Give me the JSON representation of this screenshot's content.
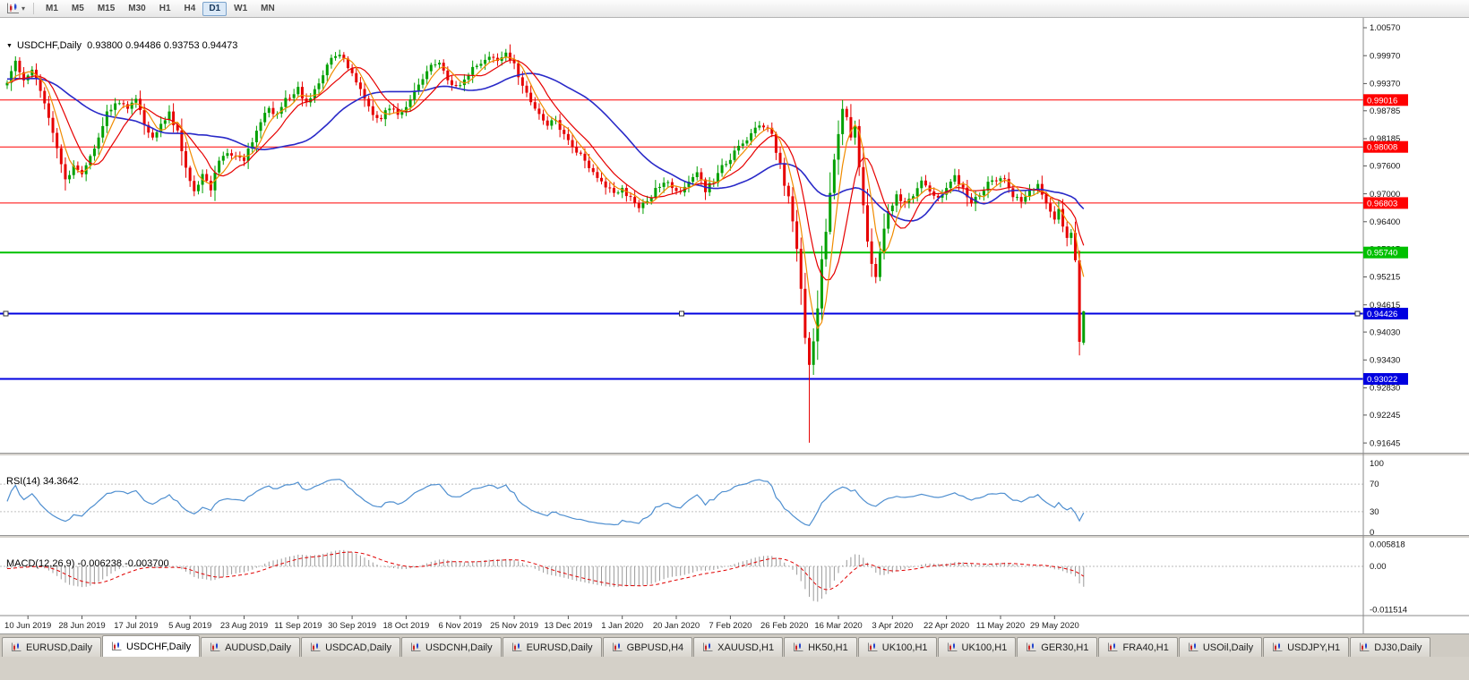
{
  "icons": {
    "symbol_dropdown": "▼",
    "toolbar_caret": "▾"
  },
  "toolbar": {
    "timeframes": [
      {
        "label": "M1",
        "active": false
      },
      {
        "label": "M5",
        "active": false
      },
      {
        "label": "M15",
        "active": false
      },
      {
        "label": "M30",
        "active": false
      },
      {
        "label": "H1",
        "active": false
      },
      {
        "label": "H4",
        "active": false
      },
      {
        "label": "D1",
        "active": true
      },
      {
        "label": "W1",
        "active": false
      },
      {
        "label": "MN",
        "active": false
      }
    ]
  },
  "chart": {
    "symbol": "USDCHF",
    "timeframe": "Daily",
    "title_line": "USDCHF,Daily  0.93800 0.94486 0.93753 0.94473"
  },
  "indicators": {
    "rsi": {
      "label": "RSI(14) 34.3642",
      "period": 14,
      "value": 34.3642,
      "axis_labels": [
        "100",
        "70",
        "30",
        "0"
      ],
      "level_lines": [
        70,
        30
      ],
      "line_color": "#4f8fd0"
    },
    "macd": {
      "label": "MACD(12,26,9) -0.006238 -0.003700",
      "fast": 12,
      "slow": 26,
      "signal": 9,
      "value": -0.006238,
      "signal_value": -0.0037,
      "axis_labels": [
        "0.005818",
        "0.00",
        "-0.011514"
      ],
      "histogram_color": "#9a9a9a",
      "signal_color": "#e00000"
    }
  },
  "price_axis": {
    "labels": [
      "1.00570",
      "0.99970",
      "0.99370",
      "0.98785",
      "0.98185",
      "0.97600",
      "0.97000",
      "0.96400",
      "0.95815",
      "0.95215",
      "0.94615",
      "0.94030",
      "0.93430",
      "0.92830",
      "0.92245",
      "0.91645"
    ]
  },
  "date_axis": {
    "labels": [
      "10 Jun 2019",
      "28 Jun 2019",
      "17 Jul 2019",
      "5 Aug 2019",
      "23 Aug 2019",
      "11 Sep 2019",
      "30 Sep 2019",
      "18 Oct 2019",
      "6 Nov 2019",
      "25 Nov 2019",
      "13 Dec 2019",
      "1 Jan 2020",
      "20 Jan 2020",
      "7 Feb 2020",
      "26 Feb 2020",
      "16 Mar 2020",
      "3 Apr 2020",
      "22 Apr 2020",
      "11 May 2020",
      "29 May 2020"
    ]
  },
  "chart_data": {
    "type": "candlestick",
    "symbol": "USDCHF",
    "timeframe": "Daily",
    "current_bar": {
      "open": 0.938,
      "high": 0.94486,
      "low": 0.93753,
      "close": 0.94473
    },
    "price_range": [
      0.91645,
      1.0057
    ],
    "num_candles": 260,
    "up_color": "#00a000",
    "down_color": "#e60000",
    "horizontal_lines": [
      {
        "price": 0.99016,
        "label": "0.99016",
        "color": "#ff0000",
        "width": 1,
        "selected": false
      },
      {
        "price": 0.98008,
        "label": "0.98008",
        "color": "#ff0000",
        "width": 1,
        "selected": false
      },
      {
        "price": 0.96803,
        "label": "0.96803",
        "color": "#ff0000",
        "width": 1,
        "selected": false
      },
      {
        "price": 0.9574,
        "label": "0.95740",
        "color": "#00c000",
        "width": 2,
        "selected": false
      },
      {
        "price": 0.94426,
        "label": "0.94426",
        "color": "#0000e0",
        "width": 2,
        "selected": true
      },
      {
        "price": 0.93022,
        "label": "0.93022",
        "color": "#0000e0",
        "width": 2,
        "selected": false
      }
    ],
    "moving_averages": [
      {
        "name": "fast",
        "period": 5,
        "color": "#f08c00"
      },
      {
        "name": "medium",
        "period": 10,
        "color": "#e60000"
      },
      {
        "name": "slow",
        "period": 30,
        "color": "#2929c8"
      }
    ],
    "spikes": [
      {
        "index": 193,
        "low": 0.9165
      },
      {
        "index": 201,
        "high": 0.9902
      }
    ],
    "price_path_anchors": [
      [
        0,
        0.9935
      ],
      [
        2,
        0.9985
      ],
      [
        4,
        0.9945
      ],
      [
        6,
        0.9968
      ],
      [
        8,
        0.9925
      ],
      [
        10,
        0.9862
      ],
      [
        12,
        0.9795
      ],
      [
        14,
        0.9728
      ],
      [
        16,
        0.9762
      ],
      [
        18,
        0.9742
      ],
      [
        20,
        0.9778
      ],
      [
        22,
        0.982
      ],
      [
        24,
        0.9872
      ],
      [
        26,
        0.9898
      ],
      [
        29,
        0.9882
      ],
      [
        31,
        0.9902
      ],
      [
        33,
        0.9852
      ],
      [
        35,
        0.9822
      ],
      [
        37,
        0.9848
      ],
      [
        39,
        0.9872
      ],
      [
        41,
        0.9832
      ],
      [
        43,
        0.9752
      ],
      [
        45,
        0.9708
      ],
      [
        47,
        0.9738
      ],
      [
        49,
        0.9712
      ],
      [
        51,
        0.9772
      ],
      [
        53,
        0.9792
      ],
      [
        55,
        0.9782
      ],
      [
        57,
        0.9772
      ],
      [
        59,
        0.9812
      ],
      [
        61,
        0.9858
      ],
      [
        63,
        0.9882
      ],
      [
        65,
        0.9868
      ],
      [
        67,
        0.9902
      ],
      [
        70,
        0.9928
      ],
      [
        72,
        0.9892
      ],
      [
        74,
        0.9922
      ],
      [
        76,
        0.9958
      ],
      [
        78,
        0.9992
      ],
      [
        80,
        1.0002
      ],
      [
        82,
        0.9972
      ],
      [
        84,
        0.9938
      ],
      [
        86,
        0.9902
      ],
      [
        88,
        0.9868
      ],
      [
        90,
        0.9862
      ],
      [
        92,
        0.9888
      ],
      [
        94,
        0.9868
      ],
      [
        96,
        0.9888
      ],
      [
        98,
        0.9918
      ],
      [
        100,
        0.9948
      ],
      [
        102,
        0.9972
      ],
      [
        104,
        0.9982
      ],
      [
        106,
        0.9948
      ],
      [
        108,
        0.9928
      ],
      [
        110,
        0.9948
      ],
      [
        112,
        0.9968
      ],
      [
        114,
        0.9982
      ],
      [
        116,
        0.9998
      ],
      [
        118,
        0.9988
      ],
      [
        120,
        1.0002
      ],
      [
        122,
        0.9978
      ],
      [
        124,
        0.9932
      ],
      [
        126,
        0.9898
      ],
      [
        128,
        0.9872
      ],
      [
        130,
        0.9848
      ],
      [
        132,
        0.9858
      ],
      [
        134,
        0.9828
      ],
      [
        136,
        0.9802
      ],
      [
        138,
        0.9782
      ],
      [
        140,
        0.9758
      ],
      [
        142,
        0.9738
      ],
      [
        144,
        0.9718
      ],
      [
        146,
        0.9698
      ],
      [
        148,
        0.9712
      ],
      [
        150,
        0.9688
      ],
      [
        152,
        0.9668
      ],
      [
        154,
        0.9688
      ],
      [
        156,
        0.9708
      ],
      [
        158,
        0.9728
      ],
      [
        160,
        0.9718
      ],
      [
        162,
        0.9698
      ],
      [
        164,
        0.9728
      ],
      [
        166,
        0.9748
      ],
      [
        168,
        0.9708
      ],
      [
        170,
        0.9728
      ],
      [
        172,
        0.9758
      ],
      [
        174,
        0.9778
      ],
      [
        176,
        0.9798
      ],
      [
        178,
        0.9818
      ],
      [
        180,
        0.9842
      ],
      [
        182,
        0.9848
      ],
      [
        184,
        0.9828
      ],
      [
        186,
        0.9758
      ],
      [
        188,
        0.9688
      ],
      [
        190,
        0.9588
      ],
      [
        191,
        0.9498
      ],
      [
        192,
        0.9398
      ],
      [
        193,
        0.9328
      ],
      [
        194,
        0.9388
      ],
      [
        195,
        0.9448
      ],
      [
        196,
        0.9558
      ],
      [
        197,
        0.9618
      ],
      [
        198,
        0.9698
      ],
      [
        199,
        0.9778
      ],
      [
        200,
        0.9828
      ],
      [
        201,
        0.9878
      ],
      [
        202,
        0.9858
      ],
      [
        203,
        0.9818
      ],
      [
        204,
        0.9838
      ],
      [
        205,
        0.9758
      ],
      [
        206,
        0.9678
      ],
      [
        207,
        0.9598
      ],
      [
        208,
        0.9545
      ],
      [
        209,
        0.9528
      ],
      [
        210,
        0.9568
      ],
      [
        211,
        0.9618
      ],
      [
        212,
        0.9658
      ],
      [
        214,
        0.9698
      ],
      [
        216,
        0.9678
      ],
      [
        218,
        0.9698
      ],
      [
        220,
        0.9728
      ],
      [
        222,
        0.9708
      ],
      [
        224,
        0.9688
      ],
      [
        226,
        0.9718
      ],
      [
        228,
        0.9742
      ],
      [
        230,
        0.9708
      ],
      [
        232,
        0.9682
      ],
      [
        234,
        0.9702
      ],
      [
        236,
        0.9722
      ],
      [
        238,
        0.9732
      ],
      [
        240,
        0.9728
      ],
      [
        242,
        0.9698
      ],
      [
        244,
        0.9678
      ],
      [
        246,
        0.9702
      ],
      [
        248,
        0.9718
      ],
      [
        250,
        0.9682
      ],
      [
        252,
        0.9645
      ],
      [
        253,
        0.9665
      ],
      [
        254,
        0.9635
      ],
      [
        255,
        0.9605
      ],
      [
        256,
        0.9612
      ],
      [
        257,
        0.956
      ],
      [
        258,
        0.9382
      ],
      [
        259,
        0.94473
      ]
    ]
  },
  "tabs": [
    {
      "label": "EURUSD,Daily",
      "active": false
    },
    {
      "label": "USDCHF,Daily",
      "active": true
    },
    {
      "label": "AUDUSD,Daily",
      "active": false
    },
    {
      "label": "USDCAD,Daily",
      "active": false
    },
    {
      "label": "USDCNH,Daily",
      "active": false
    },
    {
      "label": "EURUSD,Daily",
      "active": false
    },
    {
      "label": "GBPUSD,H4",
      "active": false
    },
    {
      "label": "XAUUSD,H1",
      "active": false
    },
    {
      "label": "HK50,H1",
      "active": false
    },
    {
      "label": "UK100,H1",
      "active": false
    },
    {
      "label": "UK100,H1",
      "active": false
    },
    {
      "label": "GER30,H1",
      "active": false
    },
    {
      "label": "FRA40,H1",
      "active": false
    },
    {
      "label": "USOil,Daily",
      "active": false
    },
    {
      "label": "USDJPY,H1",
      "active": false
    },
    {
      "label": "DJ30,Daily",
      "active": false
    }
  ]
}
